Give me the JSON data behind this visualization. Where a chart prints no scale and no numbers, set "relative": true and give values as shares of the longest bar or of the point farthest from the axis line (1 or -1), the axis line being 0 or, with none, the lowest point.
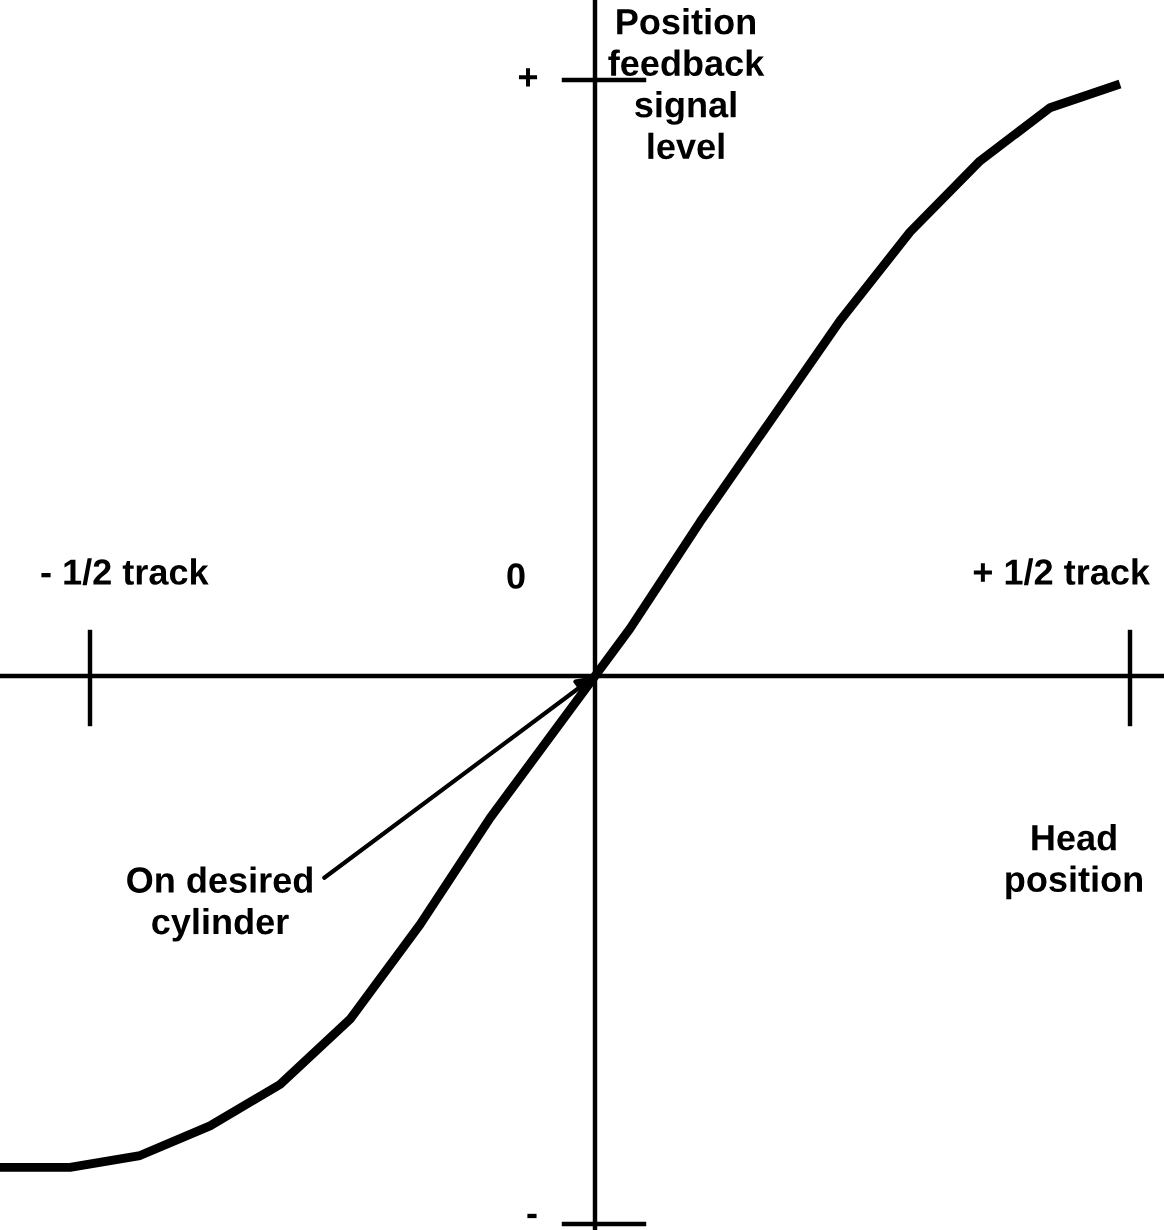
{
  "chart_data": {
    "type": "line",
    "relative": true,
    "ylabel": "Position\nfeedback\nsignal\nlevel",
    "xlabel": "Head\nposition",
    "categories": [
      null,
      null,
      null,
      null,
      null,
      null,
      null,
      null,
      null,
      null,
      null,
      null,
      null,
      null,
      null,
      null,
      null
    ],
    "series": [
      {
        "color": "#000000",
        "values": [
          -0.83,
          -0.83,
          -0.81,
          -0.76,
          -0.69,
          -0.58,
          -0.42,
          -0.24,
          -0.08,
          0.08,
          0.26,
          0.43,
          0.6,
          0.75,
          0.87,
          0.96,
          1.0
        ]
      }
    ],
    "annotations": [
      "- 1/2 track",
      "+ 1/2 track",
      "0",
      "+",
      "-",
      "On desired\ncylinder"
    ],
    "legend": false,
    "marker": "none",
    "line_style": "solid"
  }
}
